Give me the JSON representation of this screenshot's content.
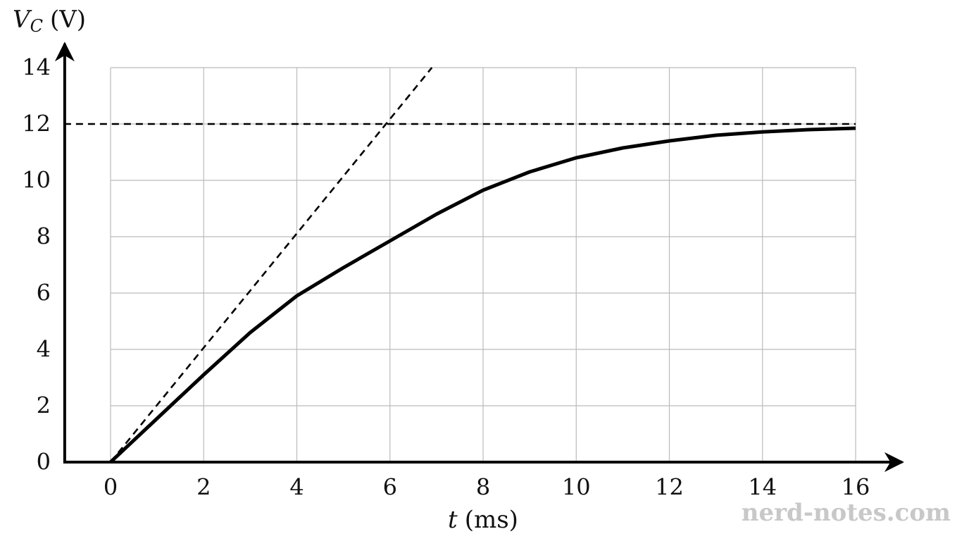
{
  "chart_data": {
    "type": "line",
    "xlabel": {
      "symbol": "t",
      "unit": "(ms)"
    },
    "ylabel": {
      "symbol": "V",
      "subscript": "C",
      "unit": "(V)"
    },
    "xlim": [
      -1,
      17
    ],
    "ylim": [
      0,
      14.85
    ],
    "xticks": [
      0,
      2,
      4,
      6,
      8,
      10,
      12,
      14,
      16
    ],
    "yticks": [
      0,
      2,
      4,
      6,
      8,
      10,
      12,
      14
    ],
    "grid": true,
    "series": [
      {
        "color": "#000000",
        "style": "solid",
        "x": [
          0,
          1,
          2,
          3,
          4,
          5,
          6,
          7,
          8,
          9,
          10,
          11,
          12,
          13,
          14,
          15,
          16
        ],
        "values": [
          0,
          1.55,
          3.1,
          4.6,
          5.9,
          6.9,
          7.85,
          8.8,
          9.65,
          10.3,
          10.8,
          11.15,
          11.4,
          11.6,
          11.72,
          11.8,
          11.85
        ]
      },
      {
        "color": "#000000",
        "style": "dashed",
        "x": [
          0,
          6.9
        ],
        "values": [
          0,
          14
        ]
      },
      {
        "color": "#000000",
        "style": "dashed",
        "x": [
          -1,
          16
        ],
        "values": [
          12,
          12
        ]
      }
    ],
    "watermark": "nerd-notes.com"
  }
}
